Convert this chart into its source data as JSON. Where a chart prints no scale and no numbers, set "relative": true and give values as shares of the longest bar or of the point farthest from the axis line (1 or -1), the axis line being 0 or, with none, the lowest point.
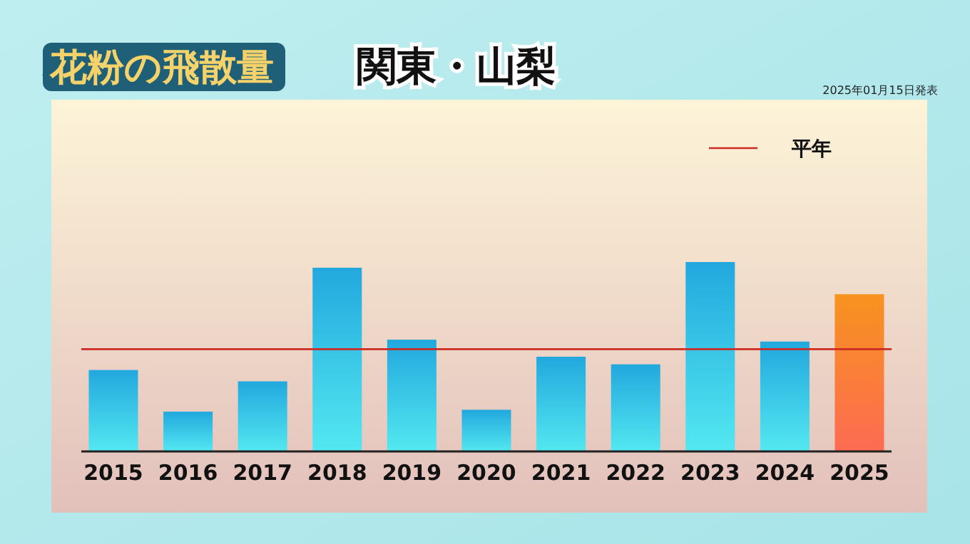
{
  "chart_data": {
    "type": "bar",
    "title": "花粉の飛散量",
    "subtitle": "関東・山梨",
    "relative": true,
    "categories": [
      "2015",
      "2016",
      "2017",
      "2018",
      "2019",
      "2020",
      "2021",
      "2022",
      "2023",
      "2024",
      "2025"
    ],
    "values": [
      0.43,
      0.21,
      0.37,
      0.97,
      0.59,
      0.22,
      0.5,
      0.46,
      1,
      0.58,
      0.83
    ],
    "colors": [
      "#22a8de",
      "#22a8de",
      "#22a8de",
      "#22a8de",
      "#22a8de",
      "#22a8de",
      "#22a8de",
      "#22a8de",
      "#22a8de",
      "#22a8de",
      "#f7931e"
    ],
    "ref_lines": [
      {
        "axis": "y",
        "value": 0.54,
        "label": "平年",
        "color": "#cc2a22"
      }
    ],
    "legend": "top right",
    "annotations": [
      "2025年01月15日発表"
    ]
  }
}
